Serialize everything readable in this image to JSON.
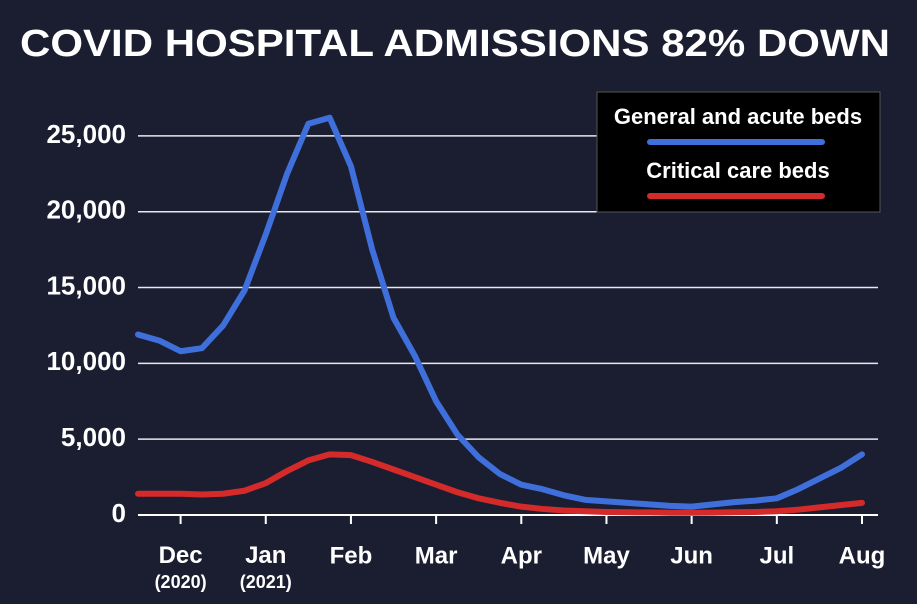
{
  "chart_data": {
    "type": "line",
    "title": "COVID HOSPITAL ADMISSIONS 82% DOWN",
    "categories": [
      null,
      null,
      "Dec (2020)",
      null,
      null,
      null,
      "Jan (2021)",
      null,
      null,
      null,
      "Feb",
      null,
      null,
      null,
      "Mar",
      null,
      null,
      null,
      "Apr",
      null,
      null,
      null,
      "May",
      null,
      null,
      null,
      "Jun",
      null,
      null,
      null,
      "Jul",
      null,
      null,
      null,
      "Aug"
    ],
    "series": [
      {
        "name": "General and acute beds",
        "color": "#3f6fdb",
        "values": [
          11900,
          11500,
          10800,
          11000,
          12500,
          14800,
          18500,
          22500,
          25800,
          26200,
          23000,
          17500,
          13000,
          10500,
          7500,
          5300,
          3800,
          2700,
          2000,
          1700,
          1300,
          1000,
          900,
          800,
          700,
          600,
          550,
          700,
          850,
          950,
          1100,
          1700,
          2400,
          3100,
          4000
        ]
      },
      {
        "name": "Critical care beds",
        "color": "#d42a2a",
        "values": [
          1400,
          1400,
          1400,
          1350,
          1400,
          1600,
          2100,
          2900,
          3600,
          4000,
          3950,
          3500,
          3000,
          2500,
          2000,
          1500,
          1100,
          800,
          550,
          400,
          300,
          250,
          200,
          180,
          170,
          150,
          150,
          160,
          180,
          200,
          250,
          350,
          500,
          650,
          800
        ]
      }
    ],
    "ylim": [
      0,
      27500
    ],
    "yticks": [
      0,
      {
        "value": 5000,
        "label": "5,000"
      },
      {
        "value": 10000,
        "label": "10,000"
      },
      {
        "value": 15000,
        "label": "15,000"
      },
      {
        "value": 20000,
        "label": "20,000"
      },
      {
        "value": 25000,
        "label": "25,000"
      }
    ],
    "grid": true,
    "legend": "upper right"
  }
}
